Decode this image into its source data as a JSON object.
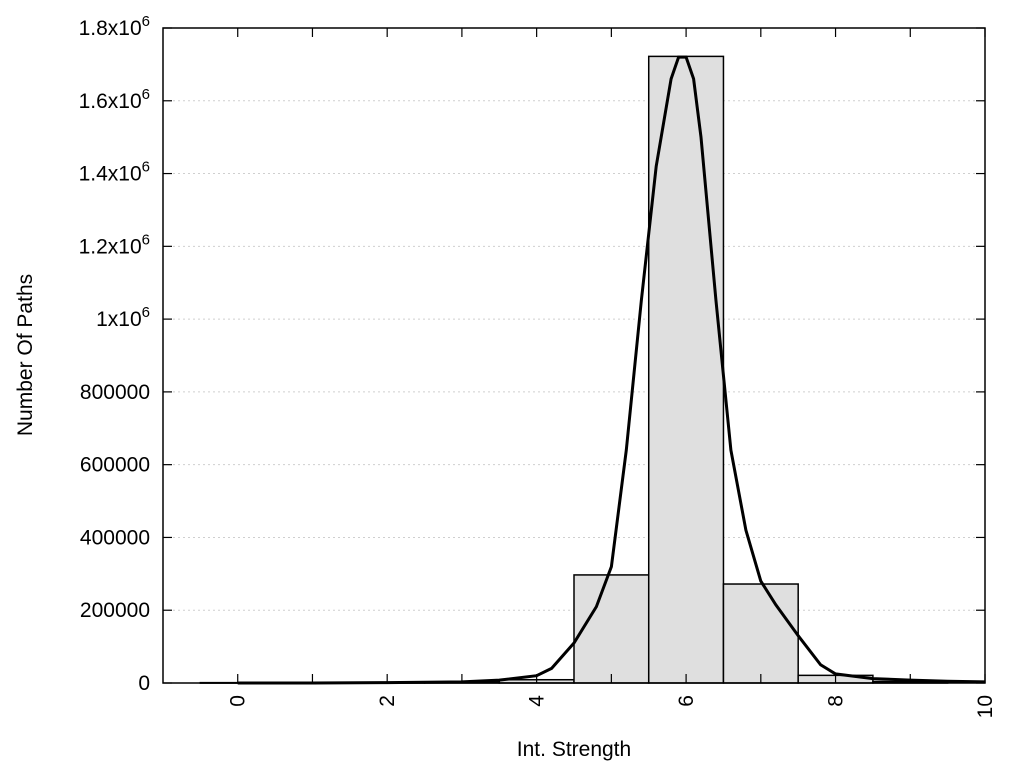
{
  "chart_data": {
    "type": "bar",
    "title": "",
    "xlabel": "Int. Strength",
    "ylabel": "Number Of Paths",
    "xlim": [
      -1,
      10
    ],
    "ylim": [
      0,
      1800000
    ],
    "grid": true,
    "x_ticks": [
      0,
      2,
      4,
      6,
      8,
      10
    ],
    "y_ticks": [
      {
        "value": 0,
        "base": "0",
        "exp": ""
      },
      {
        "value": 200000,
        "base": "200000",
        "exp": ""
      },
      {
        "value": 400000,
        "base": "400000",
        "exp": ""
      },
      {
        "value": 600000,
        "base": "600000",
        "exp": ""
      },
      {
        "value": 800000,
        "base": "800000",
        "exp": ""
      },
      {
        "value": 1000000,
        "base": "1x10",
        "exp": "6"
      },
      {
        "value": 1200000,
        "base": "1.2x10",
        "exp": "6"
      },
      {
        "value": 1400000,
        "base": "1.4x10",
        "exp": "6"
      },
      {
        "value": 1600000,
        "base": "1.6x10",
        "exp": "6"
      },
      {
        "value": 1800000,
        "base": "1.8x10",
        "exp": "6"
      }
    ],
    "bar_width": 1,
    "bars": [
      {
        "x": 0,
        "value": 1000
      },
      {
        "x": 1,
        "value": 1000
      },
      {
        "x": 2,
        "value": 1500
      },
      {
        "x": 3,
        "value": 2000
      },
      {
        "x": 4,
        "value": 9000
      },
      {
        "x": 5,
        "value": 297000
      },
      {
        "x": 6,
        "value": 1722000
      },
      {
        "x": 7,
        "value": 272000
      },
      {
        "x": 8,
        "value": 21000
      },
      {
        "x": 9,
        "value": 4000
      }
    ],
    "curve": {
      "x": [
        0,
        1,
        2,
        3,
        3.5,
        4,
        4.2,
        4.5,
        4.8,
        5,
        5.2,
        5.4,
        5.6,
        5.8,
        5.9,
        6,
        6.1,
        6.2,
        6.4,
        6.6,
        6.8,
        7,
        7.2,
        7.5,
        7.8,
        8,
        8.5,
        9,
        9.5,
        10
      ],
      "y": [
        0,
        0,
        1000,
        3000,
        8000,
        20000,
        40000,
        110000,
        210000,
        320000,
        640000,
        1050000,
        1420000,
        1660000,
        1720000,
        1720000,
        1660000,
        1500000,
        1050000,
        640000,
        420000,
        280000,
        215000,
        130000,
        50000,
        25000,
        12000,
        8000,
        5000,
        3000
      ]
    }
  }
}
